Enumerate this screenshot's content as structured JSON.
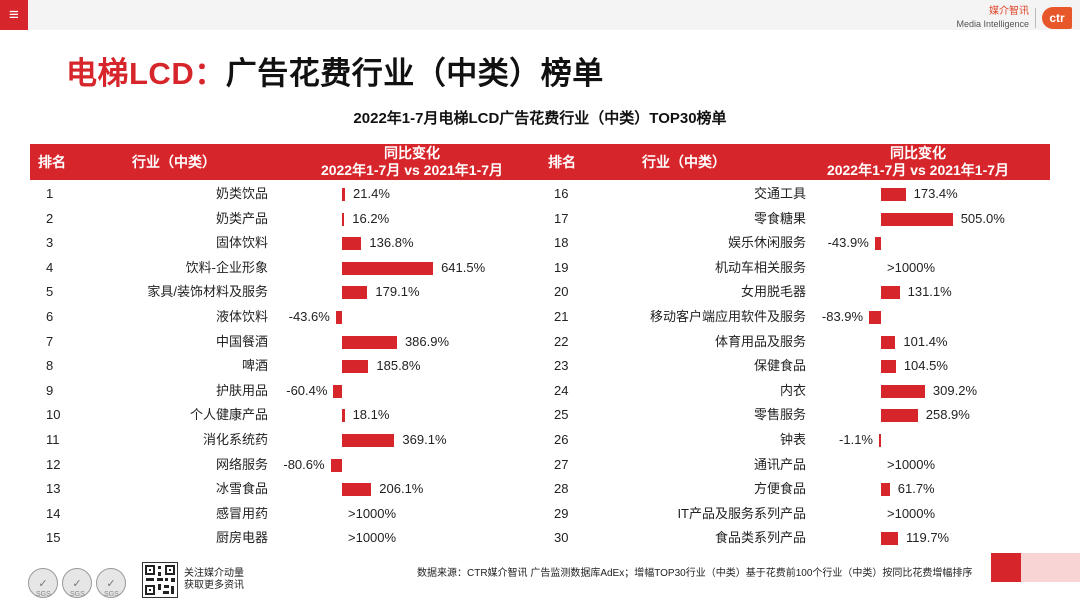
{
  "topbar": {
    "menu_icon": "≡",
    "brand_cn": "媒介智讯",
    "brand_en": "Media Intelligence",
    "brand_logo": "ctr"
  },
  "page": {
    "title_accent": "电梯LCD：",
    "title_rest": "广告花费行业（中类）榜单"
  },
  "colors": {
    "accent": "#d7262b",
    "pink": "#f8d4d4"
  },
  "chart_data": {
    "type": "table",
    "title": "2022年1-7月电梯LCD广告花费行业（中类）TOP30榜单",
    "columns": {
      "rank": "排名",
      "industry": "行业（中类）",
      "change_line1": "同比变化",
      "change_line2": "2022年1-7月 vs 2021年1-7月"
    },
    "left": [
      {
        "rank": "1",
        "industry": "奶类饮品",
        "value": 21.4,
        "label": "21.4%"
      },
      {
        "rank": "2",
        "industry": "奶类产品",
        "value": 16.2,
        "label": "16.2%"
      },
      {
        "rank": "3",
        "industry": "固体饮料",
        "value": 136.8,
        "label": "136.8%"
      },
      {
        "rank": "4",
        "industry": "饮料-企业形象",
        "value": 641.5,
        "label": "641.5%"
      },
      {
        "rank": "5",
        "industry": "家具/装饰材料及服务",
        "value": 179.1,
        "label": "179.1%"
      },
      {
        "rank": "6",
        "industry": "液体饮料",
        "value": -43.6,
        "label": "-43.6%"
      },
      {
        "rank": "7",
        "industry": "中国餐酒",
        "value": 386.9,
        "label": "386.9%"
      },
      {
        "rank": "8",
        "industry": "啤酒",
        "value": 185.8,
        "label": "185.8%"
      },
      {
        "rank": "9",
        "industry": "护肤用品",
        "value": -60.4,
        "label": "-60.4%"
      },
      {
        "rank": "10",
        "industry": "个人健康产品",
        "value": 18.1,
        "label": "18.1%"
      },
      {
        "rank": "11",
        "industry": "消化系统药",
        "value": 369.1,
        "label": "369.1%"
      },
      {
        "rank": "12",
        "industry": "网络服务",
        "value": -80.6,
        "label": "-80.6%"
      },
      {
        "rank": "13",
        "industry": "冰雪食品",
        "value": 206.1,
        "label": "206.1%"
      },
      {
        "rank": "14",
        "industry": "感冒用药",
        "value": null,
        "label": ">1000%"
      },
      {
        "rank": "15",
        "industry": "厨房电器",
        "value": null,
        "label": ">1000%"
      }
    ],
    "right": [
      {
        "rank": "16",
        "industry": "交通工具",
        "value": 173.4,
        "label": "173.4%"
      },
      {
        "rank": "17",
        "industry": "零食糖果",
        "value": 505.0,
        "label": "505.0%"
      },
      {
        "rank": "18",
        "industry": "娱乐休闲服务",
        "value": -43.9,
        "label": "-43.9%"
      },
      {
        "rank": "19",
        "industry": "机动车相关服务",
        "value": null,
        "label": ">1000%"
      },
      {
        "rank": "20",
        "industry": "女用脱毛器",
        "value": 131.1,
        "label": "131.1%"
      },
      {
        "rank": "21",
        "industry": "移动客户端应用软件及服务",
        "value": -83.9,
        "label": "-83.9%"
      },
      {
        "rank": "22",
        "industry": "体育用品及服务",
        "value": 101.4,
        "label": "101.4%"
      },
      {
        "rank": "23",
        "industry": "保健食品",
        "value": 104.5,
        "label": "104.5%"
      },
      {
        "rank": "24",
        "industry": "内衣",
        "value": 309.2,
        "label": "309.2%"
      },
      {
        "rank": "25",
        "industry": "零售服务",
        "value": 258.9,
        "label": "258.9%"
      },
      {
        "rank": "26",
        "industry": "钟表",
        "value": -1.1,
        "label": "-1.1%"
      },
      {
        "rank": "27",
        "industry": "通讯产品",
        "value": null,
        "label": ">1000%"
      },
      {
        "rank": "28",
        "industry": "方便食品",
        "value": 61.7,
        "label": "61.7%"
      },
      {
        "rank": "29",
        "industry": "IT产品及服务系列产品",
        "value": null,
        "label": ">1000%"
      },
      {
        "rank": "30",
        "industry": "食品类系列产品",
        "value": 119.7,
        "label": "119.7%"
      }
    ]
  },
  "footer": {
    "badges": [
      "SGS",
      "SGS",
      "SGS"
    ],
    "follow_line1": "关注媒介动量",
    "follow_line2": "获取更多资讯",
    "source": "数据来源：CTR媒介智讯 广告监测数据库AdEx；增幅TOP30行业（中类）基于花费前100个行业（中类）按同比花费增幅排序"
  }
}
